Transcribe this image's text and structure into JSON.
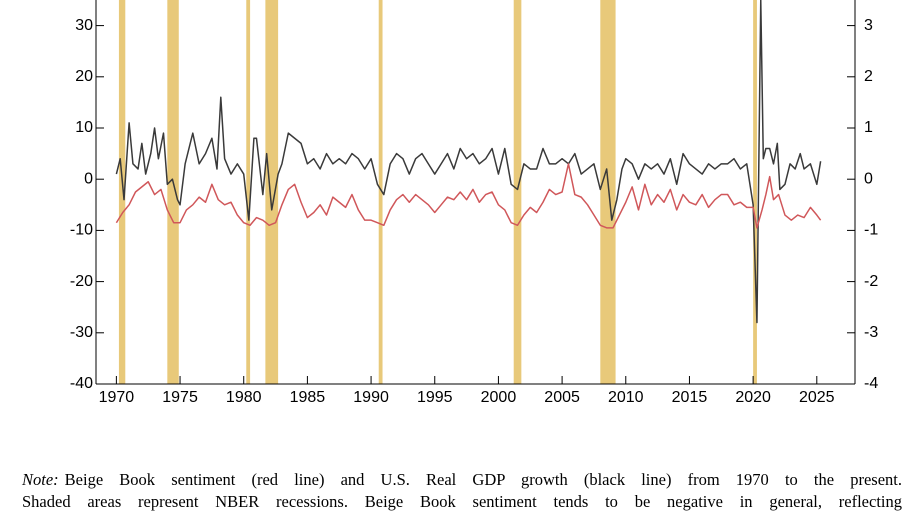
{
  "chart_data": {
    "type": "line",
    "xlim": [
      1968.4,
      2028
    ],
    "xticks": [
      1970,
      1975,
      1980,
      1985,
      1990,
      1995,
      2000,
      2005,
      2010,
      2015,
      2020,
      2025
    ],
    "ylim": [
      -40,
      35
    ],
    "yticks": [
      -40,
      -30,
      -20,
      -10,
      0,
      10,
      20,
      30
    ],
    "y2lim": [
      -4,
      3.5
    ],
    "y2ticks": [
      -4,
      -3,
      -2,
      -1,
      0,
      1,
      2,
      3
    ],
    "recession_color": "#e8c97a",
    "recessions": [
      [
        1970.2,
        1970.7
      ],
      [
        1974.0,
        1974.9
      ],
      [
        1980.2,
        1980.5
      ],
      [
        1981.7,
        1982.7
      ],
      [
        1990.6,
        1990.9
      ],
      [
        2001.2,
        2001.8
      ],
      [
        2008.0,
        2009.2
      ],
      [
        2020.0,
        2020.3
      ]
    ],
    "series": [
      {
        "color": "#3a3a3a",
        "x": [
          1970.0,
          1970.3,
          1970.6,
          1971.0,
          1971.3,
          1971.7,
          1972.0,
          1972.3,
          1972.7,
          1973.0,
          1973.3,
          1973.7,
          1974.0,
          1974.4,
          1974.8,
          1975.0,
          1975.4,
          1975.8,
          1976.0,
          1976.5,
          1977.0,
          1977.5,
          1977.9,
          1978.2,
          1978.5,
          1979.0,
          1979.5,
          1980.0,
          1980.4,
          1980.8,
          1981.0,
          1981.5,
          1981.8,
          1982.2,
          1982.7,
          1983.0,
          1983.5,
          1984.0,
          1984.5,
          1985.0,
          1985.5,
          1986.0,
          1986.5,
          1987.0,
          1987.5,
          1988.0,
          1988.5,
          1989.0,
          1989.5,
          1990.0,
          1990.5,
          1991.0,
          1991.5,
          1992.0,
          1992.5,
          1993.0,
          1993.5,
          1994.0,
          1994.5,
          1995.0,
          1995.5,
          1996.0,
          1996.5,
          1997.0,
          1997.5,
          1998.0,
          1998.5,
          1999.0,
          1999.5,
          2000.0,
          2000.5,
          2001.0,
          2001.5,
          2002.0,
          2002.5,
          2003.0,
          2003.5,
          2004.0,
          2004.5,
          2005.0,
          2005.5,
          2006.0,
          2006.5,
          2007.0,
          2007.5,
          2008.0,
          2008.5,
          2008.9,
          2009.3,
          2009.7,
          2010.0,
          2010.5,
          2011.0,
          2011.5,
          2012.0,
          2012.5,
          2013.0,
          2013.5,
          2014.0,
          2014.5,
          2015.0,
          2015.5,
          2016.0,
          2016.5,
          2017.0,
          2017.5,
          2018.0,
          2018.5,
          2019.0,
          2019.5,
          2020.0,
          2020.3,
          2020.6,
          2020.8,
          2021.0,
          2021.3,
          2021.6,
          2021.9,
          2022.1,
          2022.5,
          2022.9,
          2023.3,
          2023.7,
          2024.0,
          2024.5,
          2025.0,
          2025.3
        ],
        "values": [
          1,
          4,
          -4,
          11,
          3,
          2,
          7,
          1,
          5,
          10,
          4,
          9,
          -1,
          0,
          -4,
          -5,
          3,
          7,
          9,
          3,
          5,
          8,
          2,
          16,
          4,
          1,
          3,
          1,
          -8,
          8,
          8,
          -3,
          5,
          -6,
          1,
          3,
          9,
          8,
          7,
          3,
          4,
          2,
          5,
          3,
          4,
          3,
          5,
          4,
          2,
          4,
          -1,
          -3,
          3,
          5,
          4,
          1,
          4,
          5,
          3,
          1,
          3,
          5,
          2,
          6,
          4,
          5,
          3,
          4,
          6,
          1,
          6,
          -1,
          -2,
          3,
          2,
          2,
          6,
          3,
          3,
          4,
          3,
          5,
          1,
          2,
          3,
          -2,
          2,
          -8,
          -4,
          2,
          4,
          3,
          0,
          3,
          2,
          3,
          1,
          4,
          -1,
          5,
          3,
          2,
          1,
          3,
          2,
          3,
          3,
          4,
          2,
          3,
          -5,
          -28,
          35,
          4,
          6,
          6,
          3,
          7,
          -2,
          -1,
          3,
          2,
          5,
          2,
          3,
          -1,
          3.5
        ]
      },
      {
        "color": "#d0575a",
        "axis": "y2",
        "x": [
          1970.0,
          1970.5,
          1971.0,
          1971.5,
          1972.0,
          1972.5,
          1973.0,
          1973.5,
          1974.0,
          1974.5,
          1975.0,
          1975.5,
          1976.0,
          1976.5,
          1977.0,
          1977.5,
          1978.0,
          1978.5,
          1979.0,
          1979.5,
          1980.0,
          1980.5,
          1981.0,
          1981.5,
          1982.0,
          1982.5,
          1983.0,
          1983.5,
          1984.0,
          1984.5,
          1985.0,
          1985.5,
          1986.0,
          1986.5,
          1987.0,
          1987.5,
          1988.0,
          1988.5,
          1989.0,
          1989.5,
          1990.0,
          1990.5,
          1991.0,
          1991.5,
          1992.0,
          1992.5,
          1993.0,
          1993.5,
          1994.0,
          1994.5,
          1995.0,
          1995.5,
          1996.0,
          1996.5,
          1997.0,
          1997.5,
          1998.0,
          1998.5,
          1999.0,
          1999.5,
          2000.0,
          2000.5,
          2001.0,
          2001.5,
          2002.0,
          2002.5,
          2003.0,
          2003.5,
          2004.0,
          2004.5,
          2005.0,
          2005.5,
          2006.0,
          2006.5,
          2007.0,
          2007.5,
          2008.0,
          2008.5,
          2009.0,
          2009.5,
          2010.0,
          2010.5,
          2011.0,
          2011.5,
          2012.0,
          2012.5,
          2013.0,
          2013.5,
          2014.0,
          2014.5,
          2015.0,
          2015.5,
          2016.0,
          2016.5,
          2017.0,
          2017.5,
          2018.0,
          2018.5,
          2019.0,
          2019.5,
          2020.0,
          2020.3,
          2020.7,
          2021.0,
          2021.3,
          2021.6,
          2022.0,
          2022.5,
          2023.0,
          2023.5,
          2024.0,
          2024.5,
          2025.0,
          2025.3
        ],
        "values": [
          -0.85,
          -0.65,
          -0.5,
          -0.25,
          -0.15,
          -0.05,
          -0.3,
          -0.2,
          -0.6,
          -0.85,
          -0.85,
          -0.6,
          -0.5,
          -0.35,
          -0.45,
          -0.1,
          -0.4,
          -0.5,
          -0.45,
          -0.7,
          -0.85,
          -0.9,
          -0.75,
          -0.8,
          -0.9,
          -0.85,
          -0.5,
          -0.2,
          -0.1,
          -0.45,
          -0.75,
          -0.65,
          -0.5,
          -0.7,
          -0.35,
          -0.45,
          -0.55,
          -0.3,
          -0.6,
          -0.8,
          -0.8,
          -0.85,
          -0.9,
          -0.6,
          -0.4,
          -0.3,
          -0.45,
          -0.3,
          -0.4,
          -0.5,
          -0.65,
          -0.5,
          -0.35,
          -0.4,
          -0.25,
          -0.4,
          -0.2,
          -0.45,
          -0.3,
          -0.25,
          -0.5,
          -0.6,
          -0.85,
          -0.9,
          -0.7,
          -0.55,
          -0.65,
          -0.45,
          -0.2,
          -0.3,
          -0.25,
          0.3,
          -0.3,
          -0.35,
          -0.5,
          -0.7,
          -0.9,
          -0.95,
          -0.95,
          -0.7,
          -0.45,
          -0.15,
          -0.6,
          -0.1,
          -0.5,
          -0.3,
          -0.45,
          -0.2,
          -0.6,
          -0.3,
          -0.45,
          -0.5,
          -0.3,
          -0.55,
          -0.4,
          -0.3,
          -0.3,
          -0.5,
          -0.45,
          -0.55,
          -0.55,
          -0.95,
          -0.6,
          -0.3,
          0.05,
          -0.4,
          -0.3,
          -0.7,
          -0.8,
          -0.7,
          -0.75,
          -0.55,
          -0.7,
          -0.8
        ]
      }
    ],
    "note": {
      "label": "Note:",
      "lines": [
        "Beige Book sentiment (red line) and U.S. Real GDP growth (black line) from 1970 to the present.",
        "Shaded areas represent NBER recessions. Beige Book sentiment tends to be negative in general, reflecting"
      ]
    }
  }
}
